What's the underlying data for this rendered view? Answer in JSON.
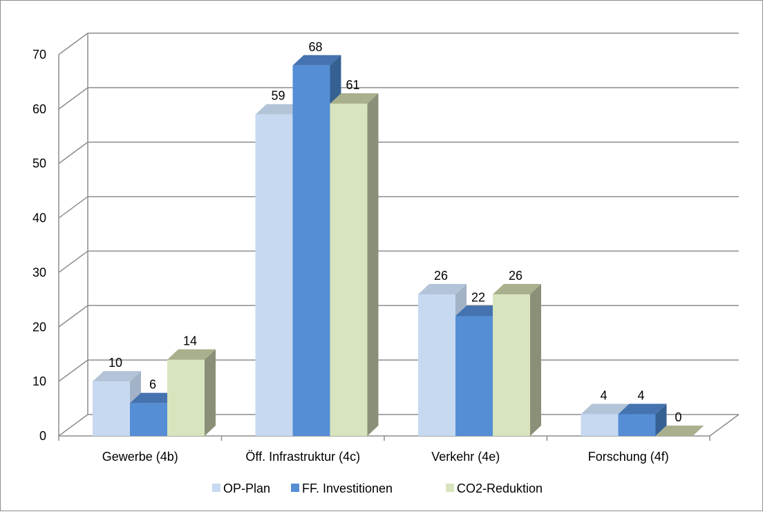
{
  "chart_data": {
    "type": "bar",
    "style": "3d-clustered-column",
    "categories": [
      "Gewerbe (4b)",
      "Öff. Infrastruktur (4c)",
      "Verkehr (4e)",
      "Forschung (4f)"
    ],
    "series": [
      {
        "name": "OP-Plan",
        "values": [
          10,
          59,
          26,
          4
        ],
        "labels": [
          "10",
          "59",
          "26",
          "4"
        ],
        "color": "#c6d9f1",
        "side": "#a3b3c7",
        "top": "#b4c4d8"
      },
      {
        "name": "FF. Investitionen",
        "values": [
          6,
          68,
          22,
          4
        ],
        "labels": [
          "6",
          "68",
          "22",
          "4"
        ],
        "color": "#558ed5",
        "side": "#366092",
        "top": "#4473b0"
      },
      {
        "name": "CO2-Reduktion",
        "values": [
          14,
          61,
          26,
          0
        ],
        "labels": [
          "14",
          "61",
          "26",
          "0"
        ],
        "color": "#d7e4bd",
        "side": "#8a8f78",
        "top": "#a9b08d"
      }
    ],
    "yticks": [
      "0",
      "10",
      "20",
      "30",
      "40",
      "50",
      "60",
      "70"
    ],
    "ylim": [
      0,
      70
    ],
    "grid": true,
    "legend_position": "bottom",
    "title": "",
    "xlabel": "",
    "ylabel": ""
  }
}
